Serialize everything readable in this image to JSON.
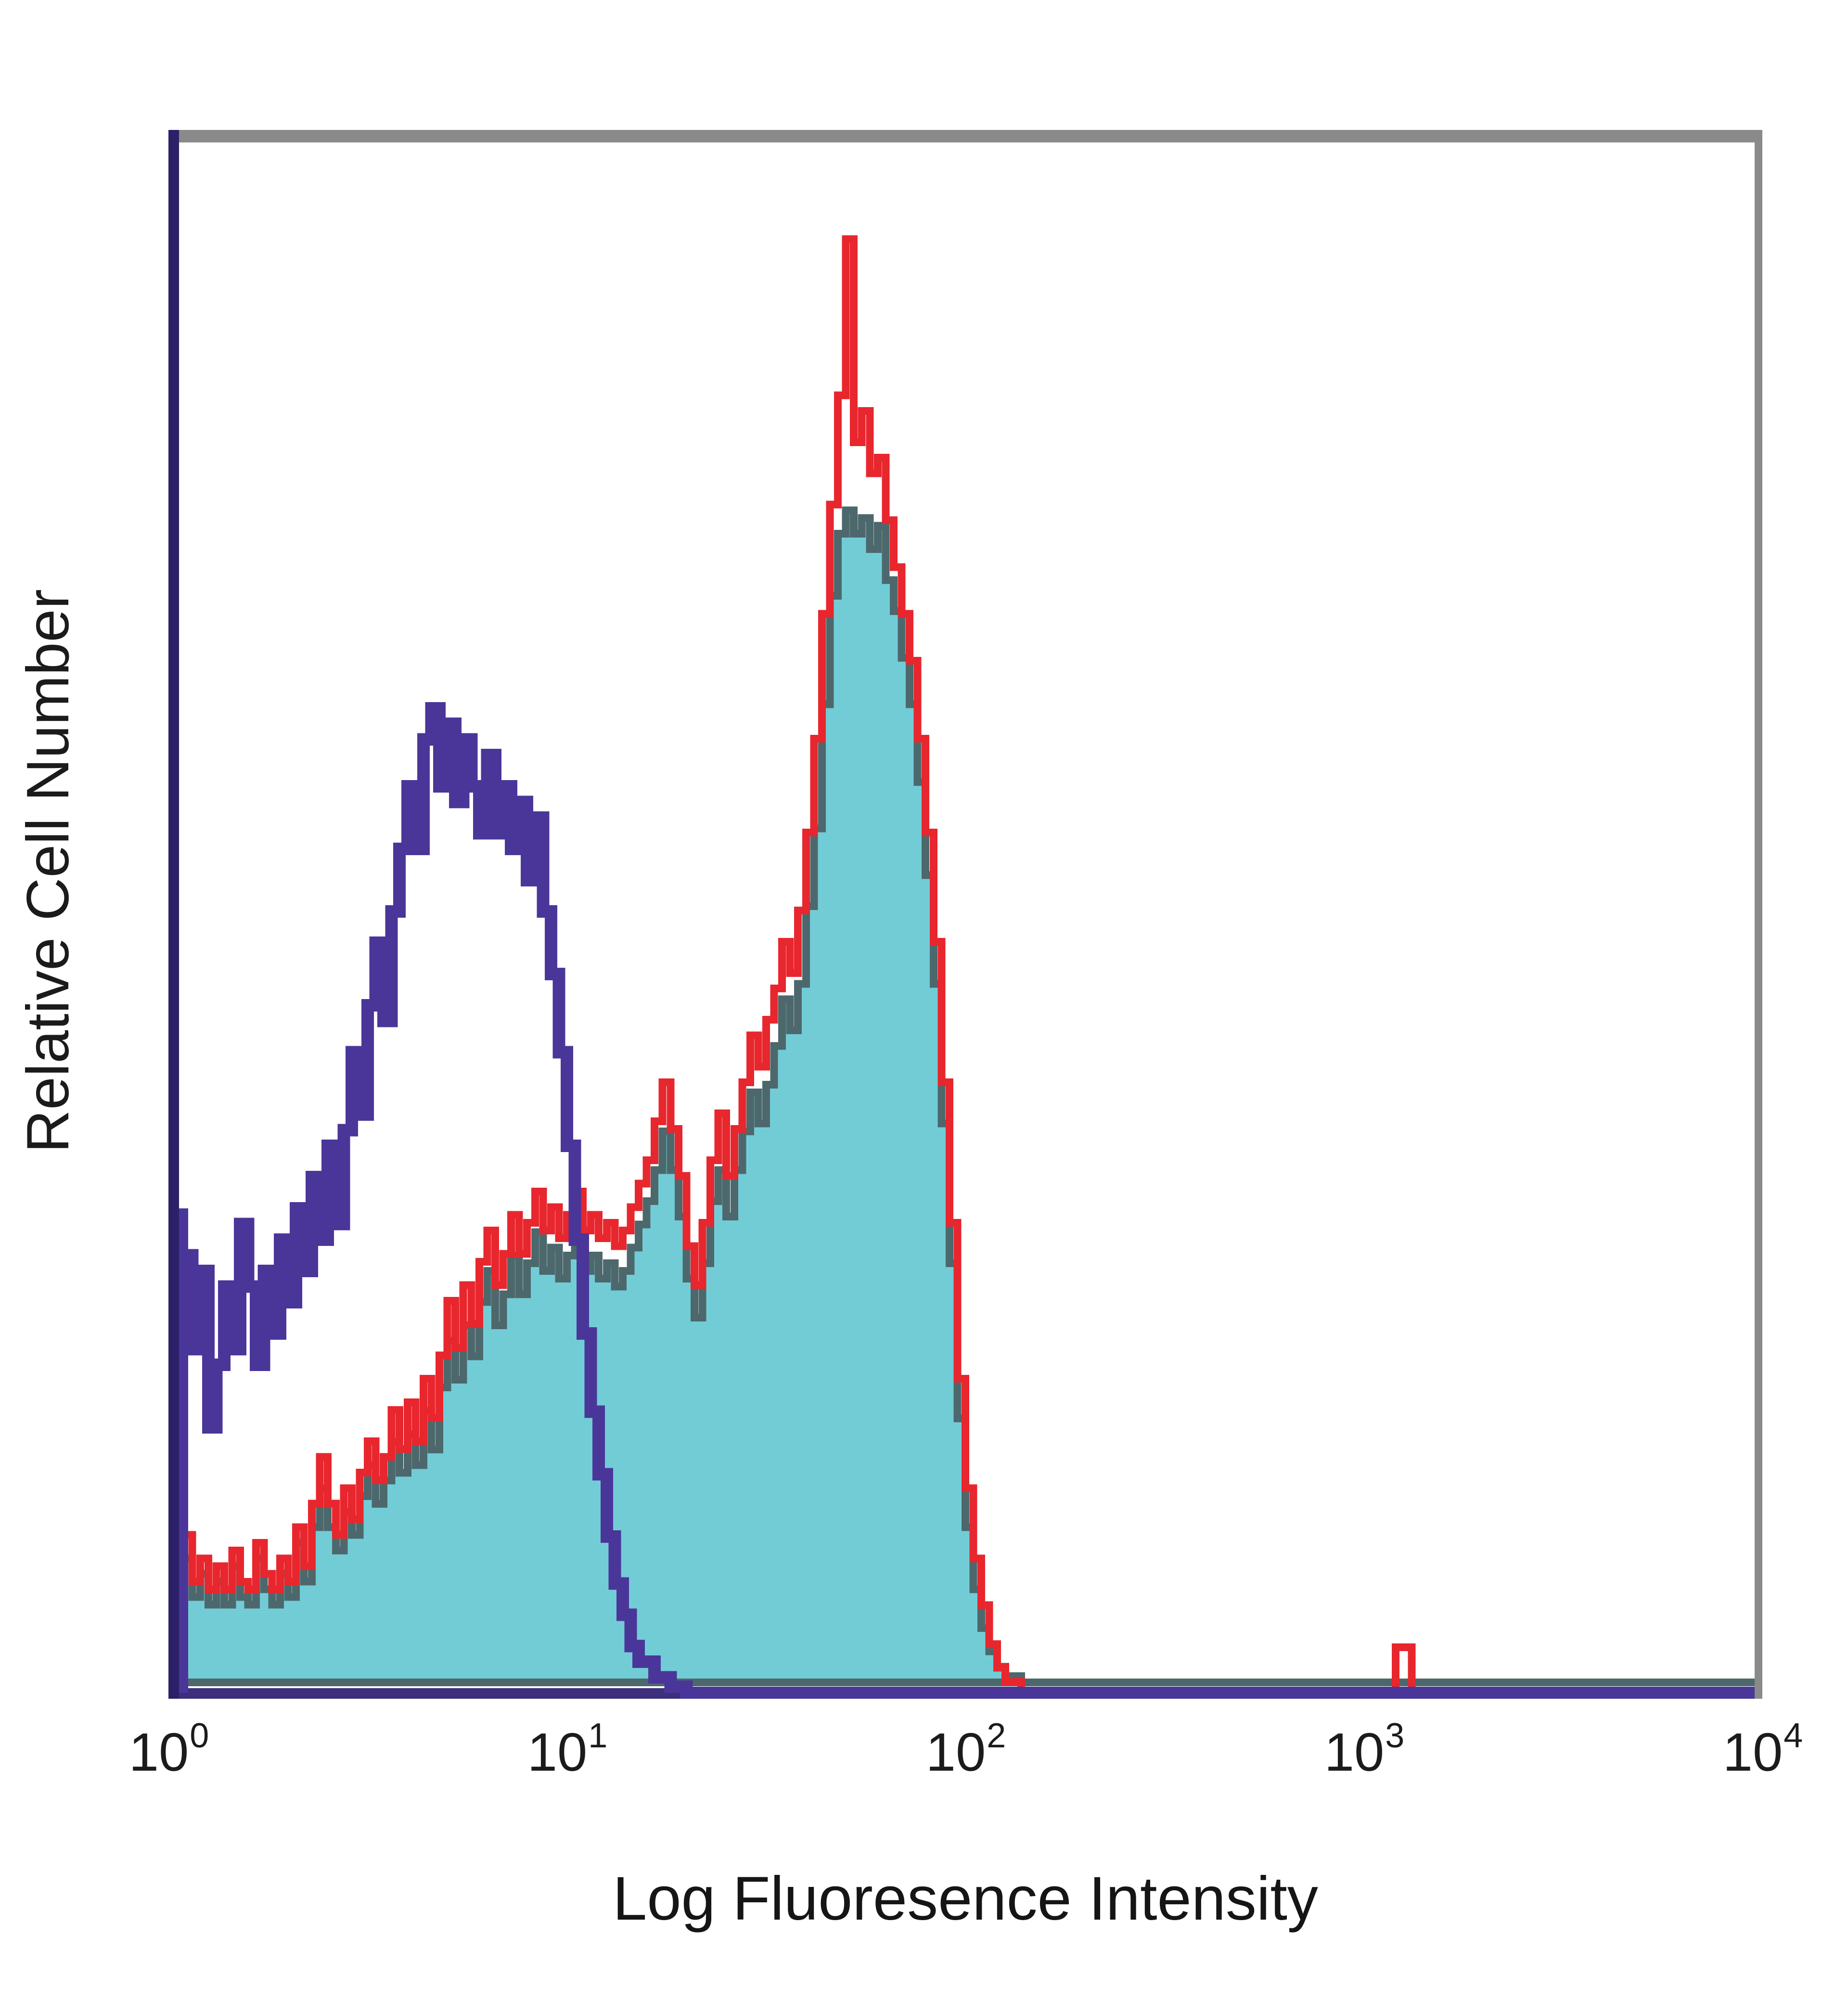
{
  "page": {
    "background": "#ffffff"
  },
  "axes": {
    "y_label": "Relative Cell Number",
    "x_label": "Log Fluoresence Intensity"
  },
  "chart_data": {
    "type": "area",
    "subtype": "flow-cytometry-overlaid-histograms",
    "title": "",
    "xlabel": "Log Fluoresence Intensity",
    "ylabel": "Relative Cell Number",
    "x_scale": "log10",
    "xlim": [
      1,
      10000
    ],
    "ylim": [
      0,
      1
    ],
    "grid": false,
    "legend": "none",
    "x_ticks": [
      {
        "base": "10",
        "exponent": "0"
      },
      {
        "base": "10",
        "exponent": "1"
      },
      {
        "base": "10",
        "exponent": "2"
      },
      {
        "base": "10",
        "exponent": "3"
      },
      {
        "base": "10",
        "exponent": "4"
      }
    ],
    "frame_colors": {
      "top": "#8a8a8a",
      "right": "#8a8a8a",
      "left": "#2c2168",
      "bottom": "#3d2f7c"
    },
    "series": [
      {
        "name": "filled-cyan-histogram",
        "style": "filled",
        "fill_color": "#72ccd6",
        "line_color": "#4d686c",
        "points": [
          [
            0.0,
            0.105
          ],
          [
            0.02,
            0.13
          ],
          [
            0.04,
            0.08
          ],
          [
            0.06,
            0.055
          ],
          [
            0.08,
            0.07
          ],
          [
            0.1,
            0.05
          ],
          [
            0.12,
            0.065
          ],
          [
            0.14,
            0.05
          ],
          [
            0.16,
            0.075
          ],
          [
            0.18,
            0.055
          ],
          [
            0.2,
            0.05
          ],
          [
            0.22,
            0.08
          ],
          [
            0.24,
            0.06
          ],
          [
            0.26,
            0.05
          ],
          [
            0.28,
            0.07
          ],
          [
            0.3,
            0.055
          ],
          [
            0.32,
            0.09
          ],
          [
            0.34,
            0.065
          ],
          [
            0.36,
            0.1
          ],
          [
            0.38,
            0.125
          ],
          [
            0.4,
            0.1
          ],
          [
            0.42,
            0.085
          ],
          [
            0.44,
            0.11
          ],
          [
            0.46,
            0.095
          ],
          [
            0.48,
            0.12
          ],
          [
            0.5,
            0.14
          ],
          [
            0.52,
            0.115
          ],
          [
            0.54,
            0.13
          ],
          [
            0.56,
            0.155
          ],
          [
            0.58,
            0.135
          ],
          [
            0.6,
            0.16
          ],
          [
            0.62,
            0.14
          ],
          [
            0.64,
            0.175
          ],
          [
            0.66,
            0.15
          ],
          [
            0.68,
            0.19
          ],
          [
            0.7,
            0.22
          ],
          [
            0.72,
            0.195
          ],
          [
            0.74,
            0.23
          ],
          [
            0.76,
            0.21
          ],
          [
            0.78,
            0.245
          ],
          [
            0.8,
            0.265
          ],
          [
            0.82,
            0.23
          ],
          [
            0.84,
            0.25
          ],
          [
            0.86,
            0.275
          ],
          [
            0.88,
            0.25
          ],
          [
            0.9,
            0.27
          ],
          [
            0.92,
            0.29
          ],
          [
            0.94,
            0.265
          ],
          [
            0.96,
            0.28
          ],
          [
            0.98,
            0.26
          ],
          [
            1.0,
            0.275
          ],
          [
            1.02,
            0.29
          ],
          [
            1.04,
            0.265
          ],
          [
            1.06,
            0.275
          ],
          [
            1.08,
            0.26
          ],
          [
            1.1,
            0.27
          ],
          [
            1.12,
            0.255
          ],
          [
            1.14,
            0.265
          ],
          [
            1.16,
            0.28
          ],
          [
            1.18,
            0.295
          ],
          [
            1.2,
            0.31
          ],
          [
            1.22,
            0.33
          ],
          [
            1.24,
            0.355
          ],
          [
            1.26,
            0.33
          ],
          [
            1.28,
            0.3
          ],
          [
            1.3,
            0.26
          ],
          [
            1.32,
            0.235
          ],
          [
            1.34,
            0.27
          ],
          [
            1.36,
            0.31
          ],
          [
            1.38,
            0.33
          ],
          [
            1.4,
            0.3
          ],
          [
            1.42,
            0.33
          ],
          [
            1.44,
            0.355
          ],
          [
            1.46,
            0.38
          ],
          [
            1.48,
            0.36
          ],
          [
            1.5,
            0.385
          ],
          [
            1.52,
            0.41
          ],
          [
            1.54,
            0.44
          ],
          [
            1.56,
            0.42
          ],
          [
            1.58,
            0.45
          ],
          [
            1.6,
            0.5
          ],
          [
            1.62,
            0.55
          ],
          [
            1.64,
            0.63
          ],
          [
            1.66,
            0.7
          ],
          [
            1.68,
            0.74
          ],
          [
            1.7,
            0.755
          ],
          [
            1.72,
            0.74
          ],
          [
            1.74,
            0.75
          ],
          [
            1.76,
            0.73
          ],
          [
            1.78,
            0.745
          ],
          [
            1.8,
            0.71
          ],
          [
            1.82,
            0.69
          ],
          [
            1.84,
            0.66
          ],
          [
            1.86,
            0.63
          ],
          [
            1.88,
            0.58
          ],
          [
            1.9,
            0.52
          ],
          [
            1.92,
            0.45
          ],
          [
            1.94,
            0.36
          ],
          [
            1.96,
            0.27
          ],
          [
            1.98,
            0.17
          ],
          [
            2.0,
            0.1
          ],
          [
            2.02,
            0.06
          ],
          [
            2.04,
            0.035
          ],
          [
            2.06,
            0.02
          ],
          [
            2.08,
            0.01
          ],
          [
            2.1,
            0.004
          ],
          [
            2.14,
            0.0
          ],
          [
            4.0,
            0.0
          ]
        ]
      },
      {
        "name": "red-open-histogram",
        "style": "open",
        "line_color": "#e8262d",
        "points": [
          [
            0.0,
            0.12
          ],
          [
            0.02,
            0.15
          ],
          [
            0.04,
            0.1
          ],
          [
            0.06,
            0.07
          ],
          [
            0.08,
            0.085
          ],
          [
            0.1,
            0.065
          ],
          [
            0.12,
            0.08
          ],
          [
            0.14,
            0.065
          ],
          [
            0.16,
            0.09
          ],
          [
            0.18,
            0.07
          ],
          [
            0.2,
            0.065
          ],
          [
            0.22,
            0.095
          ],
          [
            0.24,
            0.075
          ],
          [
            0.26,
            0.065
          ],
          [
            0.28,
            0.085
          ],
          [
            0.3,
            0.07
          ],
          [
            0.32,
            0.105
          ],
          [
            0.34,
            0.08
          ],
          [
            0.36,
            0.12
          ],
          [
            0.38,
            0.15
          ],
          [
            0.4,
            0.12
          ],
          [
            0.42,
            0.1
          ],
          [
            0.44,
            0.13
          ],
          [
            0.46,
            0.11
          ],
          [
            0.48,
            0.14
          ],
          [
            0.5,
            0.16
          ],
          [
            0.52,
            0.135
          ],
          [
            0.54,
            0.15
          ],
          [
            0.56,
            0.18
          ],
          [
            0.58,
            0.155
          ],
          [
            0.6,
            0.185
          ],
          [
            0.62,
            0.16
          ],
          [
            0.64,
            0.2
          ],
          [
            0.66,
            0.175
          ],
          [
            0.68,
            0.215
          ],
          [
            0.7,
            0.25
          ],
          [
            0.72,
            0.22
          ],
          [
            0.74,
            0.26
          ],
          [
            0.76,
            0.235
          ],
          [
            0.78,
            0.275
          ],
          [
            0.8,
            0.295
          ],
          [
            0.82,
            0.26
          ],
          [
            0.84,
            0.28
          ],
          [
            0.86,
            0.305
          ],
          [
            0.88,
            0.28
          ],
          [
            0.9,
            0.3
          ],
          [
            0.92,
            0.32
          ],
          [
            0.94,
            0.295
          ],
          [
            0.96,
            0.31
          ],
          [
            0.98,
            0.29
          ],
          [
            1.0,
            0.305
          ],
          [
            1.02,
            0.32
          ],
          [
            1.04,
            0.295
          ],
          [
            1.06,
            0.305
          ],
          [
            1.08,
            0.29
          ],
          [
            1.1,
            0.3
          ],
          [
            1.12,
            0.285
          ],
          [
            1.14,
            0.295
          ],
          [
            1.16,
            0.31
          ],
          [
            1.18,
            0.325
          ],
          [
            1.2,
            0.34
          ],
          [
            1.22,
            0.365
          ],
          [
            1.24,
            0.39
          ],
          [
            1.26,
            0.36
          ],
          [
            1.28,
            0.33
          ],
          [
            1.3,
            0.285
          ],
          [
            1.32,
            0.26
          ],
          [
            1.34,
            0.3
          ],
          [
            1.36,
            0.34
          ],
          [
            1.38,
            0.37
          ],
          [
            1.4,
            0.33
          ],
          [
            1.42,
            0.36
          ],
          [
            1.44,
            0.39
          ],
          [
            1.46,
            0.42
          ],
          [
            1.48,
            0.4
          ],
          [
            1.5,
            0.43
          ],
          [
            1.52,
            0.45
          ],
          [
            1.54,
            0.48
          ],
          [
            1.56,
            0.46
          ],
          [
            1.58,
            0.5
          ],
          [
            1.6,
            0.55
          ],
          [
            1.62,
            0.61
          ],
          [
            1.64,
            0.69
          ],
          [
            1.66,
            0.76
          ],
          [
            1.68,
            0.83
          ],
          [
            1.7,
            0.93
          ],
          [
            1.72,
            0.8
          ],
          [
            1.74,
            0.82
          ],
          [
            1.76,
            0.78
          ],
          [
            1.78,
            0.79
          ],
          [
            1.8,
            0.75
          ],
          [
            1.82,
            0.72
          ],
          [
            1.84,
            0.69
          ],
          [
            1.86,
            0.66
          ],
          [
            1.88,
            0.61
          ],
          [
            1.9,
            0.55
          ],
          [
            1.92,
            0.48
          ],
          [
            1.94,
            0.39
          ],
          [
            1.96,
            0.3
          ],
          [
            1.98,
            0.2
          ],
          [
            2.0,
            0.13
          ],
          [
            2.02,
            0.085
          ],
          [
            2.04,
            0.055
          ],
          [
            2.06,
            0.03
          ],
          [
            2.08,
            0.015
          ],
          [
            2.1,
            0.006
          ],
          [
            2.14,
            0.0
          ],
          [
            3.06,
            0.0
          ],
          [
            3.08,
            0.028
          ],
          [
            3.12,
            0.0
          ],
          [
            4.0,
            0.0
          ]
        ]
      },
      {
        "name": "purple-open-histogram",
        "style": "open",
        "line_color": "#4a3699",
        "points": [
          [
            0.0,
            0.31
          ],
          [
            0.02,
            0.25
          ],
          [
            0.04,
            0.28
          ],
          [
            0.06,
            0.22
          ],
          [
            0.08,
            0.27
          ],
          [
            0.1,
            0.17
          ],
          [
            0.12,
            0.21
          ],
          [
            0.14,
            0.26
          ],
          [
            0.16,
            0.22
          ],
          [
            0.18,
            0.3
          ],
          [
            0.2,
            0.26
          ],
          [
            0.22,
            0.21
          ],
          [
            0.24,
            0.27
          ],
          [
            0.26,
            0.23
          ],
          [
            0.28,
            0.29
          ],
          [
            0.3,
            0.25
          ],
          [
            0.32,
            0.31
          ],
          [
            0.34,
            0.27
          ],
          [
            0.36,
            0.33
          ],
          [
            0.38,
            0.29
          ],
          [
            0.4,
            0.35
          ],
          [
            0.42,
            0.3
          ],
          [
            0.44,
            0.36
          ],
          [
            0.46,
            0.41
          ],
          [
            0.48,
            0.37
          ],
          [
            0.5,
            0.44
          ],
          [
            0.52,
            0.48
          ],
          [
            0.54,
            0.43
          ],
          [
            0.56,
            0.5
          ],
          [
            0.58,
            0.54
          ],
          [
            0.6,
            0.58
          ],
          [
            0.62,
            0.54
          ],
          [
            0.64,
            0.61
          ],
          [
            0.66,
            0.63
          ],
          [
            0.68,
            0.58
          ],
          [
            0.7,
            0.62
          ],
          [
            0.72,
            0.57
          ],
          [
            0.74,
            0.61
          ],
          [
            0.76,
            0.58
          ],
          [
            0.78,
            0.55
          ],
          [
            0.8,
            0.6
          ],
          [
            0.82,
            0.55
          ],
          [
            0.84,
            0.58
          ],
          [
            0.86,
            0.54
          ],
          [
            0.88,
            0.57
          ],
          [
            0.9,
            0.52
          ],
          [
            0.92,
            0.56
          ],
          [
            0.94,
            0.5
          ],
          [
            0.96,
            0.46
          ],
          [
            0.98,
            0.41
          ],
          [
            1.0,
            0.35
          ],
          [
            1.02,
            0.29
          ],
          [
            1.04,
            0.23
          ],
          [
            1.06,
            0.18
          ],
          [
            1.08,
            0.14
          ],
          [
            1.1,
            0.1
          ],
          [
            1.12,
            0.07
          ],
          [
            1.14,
            0.05
          ],
          [
            1.16,
            0.03
          ],
          [
            1.18,
            0.02
          ],
          [
            1.22,
            0.01
          ],
          [
            1.26,
            0.004
          ],
          [
            1.3,
            0.0
          ],
          [
            4.0,
            0.0
          ]
        ]
      }
    ]
  }
}
